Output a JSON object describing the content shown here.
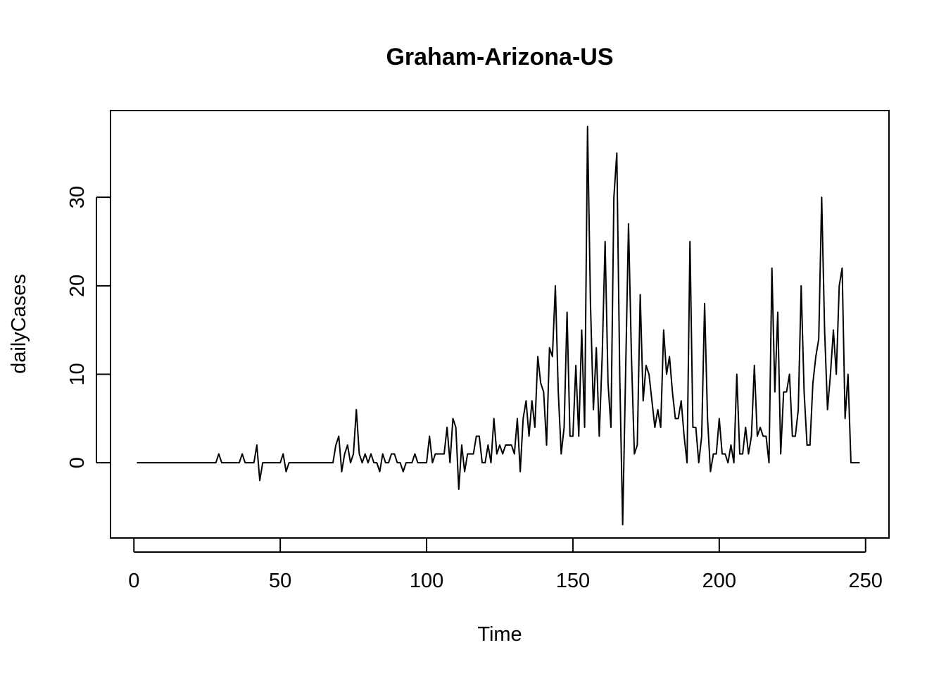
{
  "chart_data": {
    "type": "line",
    "title": "Graham-Arizona-US",
    "xlabel": "Time",
    "ylabel": "dailyCases",
    "xlim": [
      -8,
      258
    ],
    "ylim": [
      -8.5,
      39.8
    ],
    "xticks": [
      0,
      50,
      100,
      150,
      200,
      250
    ],
    "xtick_labels": [
      "0",
      "50",
      "100",
      "150",
      "200",
      "250"
    ],
    "yticks": [
      0,
      10,
      20,
      30
    ],
    "ytick_labels": [
      "0",
      "10",
      "20",
      "30"
    ],
    "grid": false,
    "legend": "none",
    "line_color": "#000000",
    "x_start": 1,
    "values": [
      0,
      0,
      0,
      0,
      0,
      0,
      0,
      0,
      0,
      0,
      0,
      0,
      0,
      0,
      0,
      0,
      0,
      0,
      0,
      0,
      0,
      0,
      0,
      0,
      0,
      0,
      0,
      0,
      1,
      0,
      0,
      0,
      0,
      0,
      0,
      0,
      1,
      0,
      0,
      0,
      0,
      2,
      -2,
      0,
      0,
      0,
      0,
      0,
      0,
      0,
      1,
      -1,
      0,
      0,
      0,
      0,
      0,
      0,
      0,
      0,
      0,
      0,
      0,
      0,
      0,
      0,
      0,
      0,
      2,
      3,
      -1,
      1,
      2,
      0,
      1,
      6,
      1,
      0,
      1,
      0,
      1,
      0,
      0,
      -1,
      1,
      0,
      0,
      1,
      1,
      0,
      0,
      -1,
      0,
      0,
      0,
      1,
      0,
      0,
      0,
      0,
      3,
      0,
      1,
      1,
      1,
      1,
      4,
      0,
      5,
      4,
      -3,
      2,
      -1,
      1,
      1,
      1,
      3,
      3,
      0,
      0,
      2,
      0,
      5,
      1,
      2,
      1,
      2,
      2,
      2,
      1,
      5,
      -1,
      5,
      7,
      3,
      7,
      4,
      12,
      9,
      8,
      2,
      13,
      12,
      20,
      8,
      1,
      4,
      17,
      3,
      3,
      11,
      3,
      15,
      4,
      38,
      18,
      6,
      13,
      3,
      12,
      25,
      9,
      4,
      30,
      35,
      10,
      -7,
      10,
      27,
      12,
      1,
      2,
      19,
      7,
      11,
      10,
      7,
      4,
      6,
      4,
      15,
      10,
      12,
      8,
      5,
      5,
      7,
      3,
      0,
      25,
      4,
      4,
      0,
      3,
      18,
      5,
      -1,
      1,
      1,
      5,
      1,
      1,
      0,
      2,
      0,
      10,
      1,
      1,
      4,
      1,
      3,
      11,
      3,
      4,
      3,
      3,
      0,
      22,
      8,
      17,
      1,
      8,
      8,
      10,
      3,
      3,
      6,
      20,
      8,
      2,
      2,
      9,
      12,
      14,
      30,
      15,
      6,
      10,
      15,
      10,
      20,
      22,
      5,
      10,
      0,
      0,
      0,
      0
    ]
  }
}
